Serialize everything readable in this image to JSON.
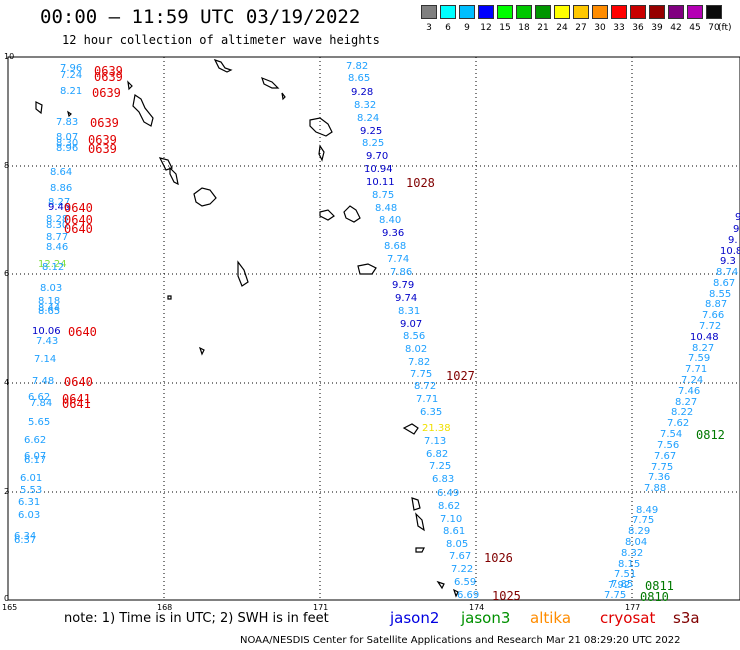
{
  "title": "00:00 – 11:59 UTC 03/19/2022",
  "subtitle": "12 hour collection of altimeter wave heights",
  "colorbar": {
    "unit": "(ft)",
    "colors": [
      "#808080",
      "#00ffff",
      "#00bfff",
      "#0000ff",
      "#00ff00",
      "#00c800",
      "#009600",
      "#ffff00",
      "#ffc800",
      "#ff8c00",
      "#ff0000",
      "#c80000",
      "#960000",
      "#800080",
      "#b400b4",
      "#0a0a0a"
    ],
    "labels": [
      "3",
      "6",
      "9",
      "12",
      "15",
      "18",
      "21",
      "24",
      "27",
      "30",
      "33",
      "36",
      "39",
      "42",
      "45",
      "70"
    ]
  },
  "x_axis": {
    "ticks": [
      "165",
      "168",
      "171",
      "174",
      "177"
    ]
  },
  "y_axis": {
    "ticks": [
      "0",
      "2",
      "4",
      "6",
      "8",
      "10"
    ]
  },
  "track_left": [
    {
      "t": "7.96",
      "c": "#1ea0ff"
    },
    {
      "t": "7.24",
      "c": "#1ea0ff"
    },
    {
      "t": "8.21",
      "c": "#1ea0ff"
    },
    {
      "t": "7.83",
      "c": "#1ea0ff"
    },
    {
      "t": "8.07",
      "c": "#1ea0ff"
    },
    {
      "t": "8.30",
      "c": "#1ea0ff"
    },
    {
      "t": "8.96",
      "c": "#1ea0ff"
    },
    {
      "t": "8.64",
      "c": "#1ea0ff"
    },
    {
      "t": "8.86",
      "c": "#1ea0ff"
    },
    {
      "t": "8.27",
      "c": "#1ea0ff"
    },
    {
      "t": "9.46",
      "c": "#0000c8"
    },
    {
      "t": "8.28",
      "c": "#1ea0ff"
    },
    {
      "t": "8.30",
      "c": "#1ea0ff"
    },
    {
      "t": "8.77",
      "c": "#1ea0ff"
    },
    {
      "t": "8.46",
      "c": "#1ea0ff"
    },
    {
      "t": "12.24",
      "c": "#7fe040"
    },
    {
      "t": "8.12",
      "c": "#1ea0ff"
    },
    {
      "t": "8.03",
      "c": "#1ea0ff"
    },
    {
      "t": "8.18",
      "c": "#1ea0ff"
    },
    {
      "t": "8.44",
      "c": "#1ea0ff"
    },
    {
      "t": "8.65",
      "c": "#1ea0ff"
    },
    {
      "t": "10.06",
      "c": "#0000c8"
    },
    {
      "t": "7.43",
      "c": "#1ea0ff"
    },
    {
      "t": "7.14",
      "c": "#1ea0ff"
    },
    {
      "t": "7.48",
      "c": "#1ea0ff"
    },
    {
      "t": "6.62",
      "c": "#1ea0ff"
    },
    {
      "t": "7.84",
      "c": "#1ea0ff"
    },
    {
      "t": "5.65",
      "c": "#1ea0ff"
    },
    {
      "t": "6.62",
      "c": "#1ea0ff"
    },
    {
      "t": "6.07",
      "c": "#1ea0ff"
    },
    {
      "t": "6.17",
      "c": "#1ea0ff"
    },
    {
      "t": "6.01",
      "c": "#1ea0ff"
    },
    {
      "t": "5.53",
      "c": "#1ea0ff"
    },
    {
      "t": "6.31",
      "c": "#1ea0ff"
    },
    {
      "t": "6.03",
      "c": "#1ea0ff"
    },
    {
      "t": "6.34",
      "c": "#1ea0ff"
    },
    {
      "t": "6.37",
      "c": "#1ea0ff"
    }
  ],
  "track_middle": [
    {
      "t": "7.82",
      "c": "#1ea0ff"
    },
    {
      "t": "8.65",
      "c": "#1ea0ff"
    },
    {
      "t": "9.28",
      "c": "#0000c8"
    },
    {
      "t": "8.32",
      "c": "#1ea0ff"
    },
    {
      "t": "8.24",
      "c": "#1ea0ff"
    },
    {
      "t": "9.25",
      "c": "#0000c8"
    },
    {
      "t": "8.25",
      "c": "#1ea0ff"
    },
    {
      "t": "9.70",
      "c": "#0000c8"
    },
    {
      "t": "10.94",
      "c": "#0000c8"
    },
    {
      "t": "10.11",
      "c": "#0000c8"
    },
    {
      "t": "8.75",
      "c": "#1ea0ff"
    },
    {
      "t": "8.48",
      "c": "#1ea0ff"
    },
    {
      "t": "8.40",
      "c": "#1ea0ff"
    },
    {
      "t": "9.36",
      "c": "#0000c8"
    },
    {
      "t": "8.68",
      "c": "#1ea0ff"
    },
    {
      "t": "7.74",
      "c": "#1ea0ff"
    },
    {
      "t": "7.86",
      "c": "#1ea0ff"
    },
    {
      "t": "9.79",
      "c": "#0000c8"
    },
    {
      "t": "9.74",
      "c": "#0000c8"
    },
    {
      "t": "8.31",
      "c": "#1ea0ff"
    },
    {
      "t": "9.07",
      "c": "#0000c8"
    },
    {
      "t": "8.56",
      "c": "#1ea0ff"
    },
    {
      "t": "8.02",
      "c": "#1ea0ff"
    },
    {
      "t": "7.82",
      "c": "#1ea0ff"
    },
    {
      "t": "7.75",
      "c": "#1ea0ff"
    },
    {
      "t": "8.72",
      "c": "#1ea0ff"
    },
    {
      "t": "7.71",
      "c": "#1ea0ff"
    },
    {
      "t": "6.35",
      "c": "#1ea0ff"
    },
    {
      "t": "21.38",
      "c": "#f0e000"
    },
    {
      "t": "7.13",
      "c": "#1ea0ff"
    },
    {
      "t": "6.82",
      "c": "#1ea0ff"
    },
    {
      "t": "7.25",
      "c": "#1ea0ff"
    },
    {
      "t": "6.83",
      "c": "#1ea0ff"
    },
    {
      "t": "6.49",
      "c": "#1ea0ff"
    },
    {
      "t": "8.62",
      "c": "#1ea0ff"
    },
    {
      "t": "7.10",
      "c": "#1ea0ff"
    },
    {
      "t": "8.61",
      "c": "#1ea0ff"
    },
    {
      "t": "8.05",
      "c": "#1ea0ff"
    },
    {
      "t": "7.67",
      "c": "#1ea0ff"
    },
    {
      "t": "7.22",
      "c": "#1ea0ff"
    },
    {
      "t": "6.59",
      "c": "#1ea0ff"
    },
    {
      "t": "6.69",
      "c": "#1ea0ff"
    }
  ],
  "track_right": [
    {
      "t": "9.",
      "c": "#0000c8"
    },
    {
      "t": "9.",
      "c": "#0000c8"
    },
    {
      "t": "9.",
      "c": "#0000c8"
    },
    {
      "t": "10.8",
      "c": "#0000c8"
    },
    {
      "t": "9.3",
      "c": "#0000c8"
    },
    {
      "t": "8.74",
      "c": "#1ea0ff"
    },
    {
      "t": "8.67",
      "c": "#1ea0ff"
    },
    {
      "t": "8.55",
      "c": "#1ea0ff"
    },
    {
      "t": "8.87",
      "c": "#1ea0ff"
    },
    {
      "t": "7.66",
      "c": "#1ea0ff"
    },
    {
      "t": "7.72",
      "c": "#1ea0ff"
    },
    {
      "t": "10.48",
      "c": "#0000c8"
    },
    {
      "t": "8.27",
      "c": "#1ea0ff"
    },
    {
      "t": "7.59",
      "c": "#1ea0ff"
    },
    {
      "t": "7.71",
      "c": "#1ea0ff"
    },
    {
      "t": "7.24",
      "c": "#1ea0ff"
    },
    {
      "t": "7.46",
      "c": "#1ea0ff"
    },
    {
      "t": "8.27",
      "c": "#1ea0ff"
    },
    {
      "t": "8.22",
      "c": "#1ea0ff"
    },
    {
      "t": "7.62",
      "c": "#1ea0ff"
    },
    {
      "t": "7.54",
      "c": "#1ea0ff"
    },
    {
      "t": "7.56",
      "c": "#1ea0ff"
    },
    {
      "t": "7.67",
      "c": "#1ea0ff"
    },
    {
      "t": "7.75",
      "c": "#1ea0ff"
    },
    {
      "t": "7.36",
      "c": "#1ea0ff"
    },
    {
      "t": "7.88",
      "c": "#1ea0ff"
    },
    {
      "t": "8.49",
      "c": "#1ea0ff"
    },
    {
      "t": "7.75",
      "c": "#1ea0ff"
    },
    {
      "t": "8.29",
      "c": "#1ea0ff"
    },
    {
      "t": "8.04",
      "c": "#1ea0ff"
    },
    {
      "t": "8.32",
      "c": "#1ea0ff"
    },
    {
      "t": "8.15",
      "c": "#1ea0ff"
    },
    {
      "t": "7.51",
      "c": "#1ea0ff"
    },
    {
      "t": "7.85",
      "c": "#1ea0ff"
    },
    {
      "t": "7.92",
      "c": "#1ea0ff"
    },
    {
      "t": "7.75",
      "c": "#1ea0ff"
    }
  ],
  "time_labels": [
    {
      "t": "0639",
      "c": "#e00000"
    },
    {
      "t": "0639",
      "c": "#e00000"
    },
    {
      "t": "0639",
      "c": "#e00000"
    },
    {
      "t": "0639",
      "c": "#e00000"
    },
    {
      "t": "0639",
      "c": "#e00000"
    },
    {
      "t": "0639",
      "c": "#e00000"
    },
    {
      "t": "0640",
      "c": "#e00000"
    },
    {
      "t": "0640",
      "c": "#e00000"
    },
    {
      "t": "0640",
      "c": "#e00000"
    },
    {
      "t": "0640",
      "c": "#e00000"
    },
    {
      "t": "0640",
      "c": "#e00000"
    },
    {
      "t": "0641",
      "c": "#e00000"
    },
    {
      "t": "0641",
      "c": "#e00000"
    },
    {
      "t": "1028",
      "c": "#800000"
    },
    {
      "t": "1027",
      "c": "#800000"
    },
    {
      "t": "1026",
      "c": "#800000"
    },
    {
      "t": "1025",
      "c": "#800000"
    },
    {
      "t": "0812",
      "c": "#007800"
    },
    {
      "t": "0811",
      "c": "#007800"
    },
    {
      "t": "0810",
      "c": "#007800"
    }
  ],
  "note": "note: 1) Time is in UTC; 2) SWH is in feet",
  "satellites": [
    {
      "name": "jason2",
      "color": "#0000e0"
    },
    {
      "name": "jason3",
      "color": "#009000"
    },
    {
      "name": "altika",
      "color": "#ff8c00"
    },
    {
      "name": "cryosat",
      "color": "#e00000"
    },
    {
      "name": "s3a",
      "color": "#800000"
    }
  ],
  "credit": "NOAA/NESDIS Center for Satellite Applications and Research   Mar 21 08:29:20 UTC 2022"
}
